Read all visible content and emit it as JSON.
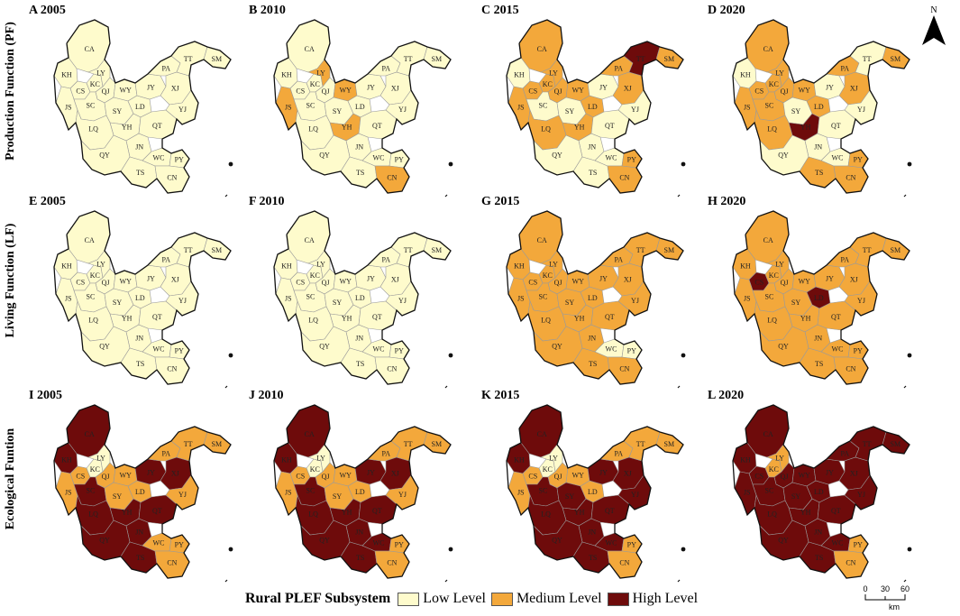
{
  "row_labels": [
    "Production Function (PF)",
    "Living Function (LF)",
    "Ecological Funtion"
  ],
  "panels": [
    {
      "title": "A 2005",
      "levels": {
        "CA": "L",
        "KH": "L",
        "CS": "L",
        "KC": "L",
        "LY": "L",
        "QJ": "L",
        "JS": "L",
        "SC": "L",
        "WY": "L",
        "SY": "L",
        "LD": "L",
        "YH": "L",
        "LQ": "L",
        "JN": "L",
        "QY": "L",
        "TS": "L",
        "WC": "L",
        "PY": "L",
        "CN": "L",
        "QT": "L",
        "JY": "L",
        "PA": "L",
        "XJ": "L",
        "YJ": "L",
        "TT": "L",
        "SM": "L"
      }
    },
    {
      "title": "B 2010",
      "levels": {
        "CA": "L",
        "KH": "L",
        "CS": "L",
        "KC": "L",
        "LY": "M",
        "QJ": "L",
        "JS": "M",
        "SC": "L",
        "WY": "M",
        "SY": "L",
        "LD": "L",
        "YH": "M",
        "LQ": "L",
        "JN": "L",
        "QY": "L",
        "TS": "L",
        "WC": "L",
        "PY": "L",
        "CN": "M",
        "QT": "L",
        "JY": "L",
        "PA": "L",
        "XJ": "L",
        "YJ": "L",
        "TT": "L",
        "SM": "L"
      }
    },
    {
      "title": "C 2015",
      "levels": {
        "CA": "M",
        "KH": "L",
        "CS": "M",
        "KC": "M",
        "LY": "M",
        "QJ": "M",
        "JS": "M",
        "SC": "L",
        "WY": "M",
        "SY": "L",
        "LD": "M",
        "YH": "M",
        "LQ": "M",
        "JN": "L",
        "QY": "L",
        "TS": "L",
        "WC": "L",
        "PY": "M",
        "CN": "M",
        "QT": "L",
        "JY": "L",
        "PA": "M",
        "XJ": "M",
        "YJ": "L",
        "TT": "H",
        "SM": "M"
      }
    },
    {
      "title": "D 2020",
      "levels": {
        "CA": "M",
        "KH": "L",
        "CS": "M",
        "KC": "M",
        "LY": "M",
        "QJ": "M",
        "JS": "M",
        "SC": "M",
        "WY": "M",
        "SY": "L",
        "LD": "M",
        "YH": "H",
        "LQ": "M",
        "JN": "L",
        "QY": "L",
        "TS": "M",
        "WC": "L",
        "PY": "M",
        "CN": "M",
        "QT": "L",
        "JY": "L",
        "PA": "M",
        "XJ": "M",
        "YJ": "L",
        "TT": "L",
        "SM": "M"
      }
    },
    {
      "title": "E 2005",
      "levels": {
        "CA": "L",
        "KH": "L",
        "CS": "L",
        "KC": "L",
        "LY": "L",
        "QJ": "L",
        "JS": "L",
        "SC": "L",
        "WY": "L",
        "SY": "L",
        "LD": "L",
        "YH": "L",
        "LQ": "L",
        "JN": "L",
        "QY": "L",
        "TS": "L",
        "WC": "L",
        "PY": "L",
        "CN": "L",
        "QT": "L",
        "JY": "L",
        "PA": "L",
        "XJ": "L",
        "YJ": "L",
        "TT": "L",
        "SM": "L"
      }
    },
    {
      "title": "F 2010",
      "levels": {
        "CA": "L",
        "KH": "L",
        "CS": "L",
        "KC": "L",
        "LY": "L",
        "QJ": "L",
        "JS": "L",
        "SC": "L",
        "WY": "L",
        "SY": "L",
        "LD": "L",
        "YH": "L",
        "LQ": "L",
        "JN": "L",
        "QY": "L",
        "TS": "L",
        "WC": "L",
        "PY": "L",
        "CN": "L",
        "QT": "L",
        "JY": "L",
        "PA": "L",
        "XJ": "L",
        "YJ": "L",
        "TT": "L",
        "SM": "L"
      }
    },
    {
      "title": "G 2015",
      "levels": {
        "CA": "M",
        "KH": "M",
        "CS": "M",
        "KC": "M",
        "LY": "M",
        "QJ": "M",
        "JS": "M",
        "SC": "M",
        "WY": "M",
        "SY": "M",
        "LD": "M",
        "YH": "M",
        "LQ": "M",
        "JN": "M",
        "QY": "M",
        "TS": "M",
        "WC": "L",
        "PY": "L",
        "CN": "M",
        "QT": "M",
        "JY": "M",
        "PA": "M",
        "XJ": "M",
        "YJ": "M",
        "TT": "M",
        "SM": "M"
      }
    },
    {
      "title": "H 2020",
      "levels": {
        "CA": "M",
        "KH": "M",
        "CS": "H",
        "KC": "M",
        "LY": "M",
        "QJ": "M",
        "JS": "M",
        "SC": "M",
        "WY": "M",
        "SY": "M",
        "LD": "H",
        "YH": "M",
        "LQ": "M",
        "JN": "M",
        "QY": "M",
        "TS": "M",
        "WC": "M",
        "PY": "M",
        "CN": "M",
        "QT": "M",
        "JY": "M",
        "PA": "M",
        "XJ": "M",
        "YJ": "M",
        "TT": "M",
        "SM": "M"
      }
    },
    {
      "title": "I 2005",
      "levels": {
        "CA": "H",
        "KH": "H",
        "CS": "M",
        "KC": "L",
        "LY": "L",
        "QJ": "M",
        "JS": "M",
        "SC": "H",
        "WY": "M",
        "SY": "M",
        "LD": "M",
        "YH": "H",
        "LQ": "H",
        "JN": "H",
        "QY": "H",
        "TS": "H",
        "WC": "M",
        "PY": "M",
        "CN": "M",
        "QT": "H",
        "JY": "H",
        "PA": "M",
        "XJ": "H",
        "YJ": "M",
        "TT": "M",
        "SM": "M"
      }
    },
    {
      "title": "J 2010",
      "levels": {
        "CA": "H",
        "KH": "H",
        "CS": "M",
        "KC": "L",
        "LY": "L",
        "QJ": "M",
        "JS": "M",
        "SC": "H",
        "WY": "M",
        "SY": "M",
        "LD": "M",
        "YH": "H",
        "LQ": "H",
        "JN": "H",
        "QY": "H",
        "TS": "H",
        "WC": "H",
        "PY": "M",
        "CN": "M",
        "QT": "H",
        "JY": "H",
        "PA": "M",
        "XJ": "H",
        "YJ": "M",
        "TT": "M",
        "SM": "M"
      }
    },
    {
      "title": "K 2015",
      "levels": {
        "CA": "H",
        "KH": "H",
        "CS": "M",
        "KC": "L",
        "LY": "L",
        "QJ": "M",
        "JS": "M",
        "SC": "H",
        "WY": "M",
        "SY": "H",
        "LD": "M",
        "YH": "H",
        "LQ": "H",
        "JN": "H",
        "QY": "H",
        "TS": "H",
        "WC": "H",
        "PY": "M",
        "CN": "M",
        "QT": "H",
        "JY": "H",
        "PA": "M",
        "XJ": "H",
        "YJ": "H",
        "TT": "M",
        "SM": "M"
      }
    },
    {
      "title": "L 2020",
      "levels": {
        "CA": "H",
        "KH": "H",
        "CS": "H",
        "KC": "M",
        "LY": "M",
        "QJ": "H",
        "JS": "H",
        "SC": "H",
        "WY": "H",
        "SY": "H",
        "LD": "H",
        "YH": "H",
        "LQ": "H",
        "JN": "H",
        "QY": "H",
        "TS": "H",
        "WC": "H",
        "PY": "M",
        "CN": "M",
        "QT": "H",
        "JY": "H",
        "PA": "H",
        "XJ": "H",
        "YJ": "H",
        "TT": "H",
        "SM": "H"
      }
    }
  ],
  "legend": {
    "title": "Rural PLEF Subsystem",
    "items": [
      {
        "label": "Low Level",
        "color": "#fefbcc"
      },
      {
        "label": "Medium Level",
        "color": "#f3a83b"
      },
      {
        "label": "High Level",
        "color": "#6e0b0b"
      }
    ]
  },
  "north_arrow": {
    "label": "N"
  },
  "scale_bar": {
    "ticks": [
      "0",
      "30",
      "60"
    ],
    "unit": "km"
  }
}
